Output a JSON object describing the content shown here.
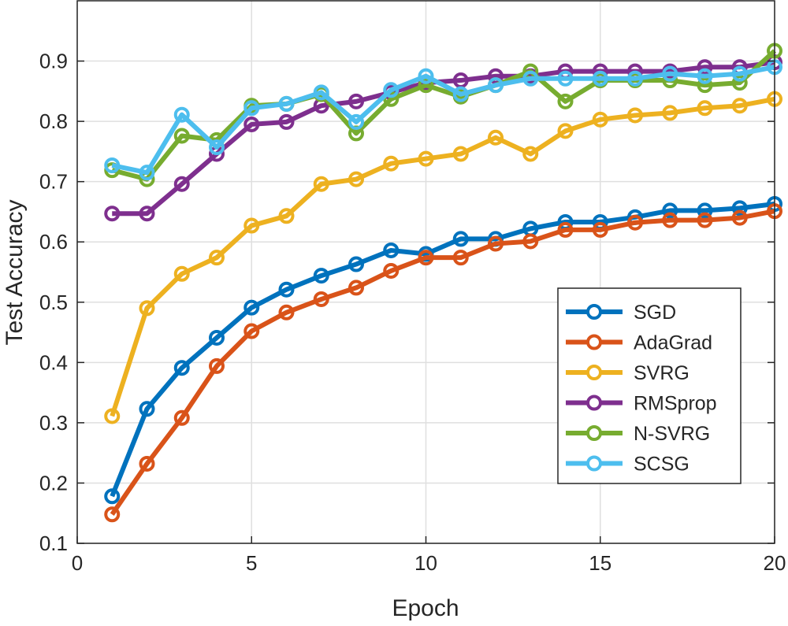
{
  "chart_data": {
    "type": "line",
    "title": "",
    "xlabel": "Epoch",
    "ylabel": "Test Accuracy",
    "xlim": [
      0,
      20
    ],
    "ylim": [
      0.1,
      1.0
    ],
    "xticks": [
      "0",
      "5",
      "10",
      "15",
      "20"
    ],
    "yticks": [
      "0.1",
      "0.2",
      "0.3",
      "0.4",
      "0.5",
      "0.6",
      "0.7",
      "0.8",
      "0.9"
    ],
    "grid": true,
    "legend_position": "lower-right",
    "x": [
      1,
      2,
      3,
      4,
      5,
      6,
      7,
      8,
      9,
      10,
      11,
      12,
      13,
      14,
      15,
      16,
      17,
      18,
      19,
      20
    ],
    "series": [
      {
        "name": "SGD",
        "color": "#0072BD",
        "values": [
          0.178,
          0.323,
          0.391,
          0.441,
          0.491,
          0.521,
          0.544,
          0.563,
          0.586,
          0.58,
          0.605,
          0.605,
          0.622,
          0.633,
          0.633,
          0.641,
          0.652,
          0.652,
          0.656,
          0.663
        ]
      },
      {
        "name": "AdaGrad",
        "color": "#D95319",
        "values": [
          0.148,
          0.232,
          0.308,
          0.394,
          0.452,
          0.483,
          0.505,
          0.524,
          0.552,
          0.574,
          0.574,
          0.597,
          0.601,
          0.62,
          0.62,
          0.632,
          0.636,
          0.636,
          0.64,
          0.651
        ]
      },
      {
        "name": "SVRG",
        "color": "#EDB120",
        "values": [
          0.311,
          0.49,
          0.547,
          0.574,
          0.627,
          0.643,
          0.696,
          0.704,
          0.73,
          0.738,
          0.746,
          0.773,
          0.746,
          0.784,
          0.803,
          0.81,
          0.814,
          0.822,
          0.826,
          0.837
        ]
      },
      {
        "name": "RMSprop",
        "color": "#7E2F8E",
        "values": [
          0.647,
          0.647,
          0.696,
          0.746,
          0.795,
          0.799,
          0.826,
          0.833,
          0.848,
          0.864,
          0.868,
          0.875,
          0.875,
          0.883,
          0.883,
          0.883,
          0.883,
          0.89,
          0.89,
          0.898
        ]
      },
      {
        "name": "N-SVRG",
        "color": "#77AC30",
        "values": [
          0.719,
          0.704,
          0.776,
          0.769,
          0.826,
          0.829,
          0.845,
          0.78,
          0.837,
          0.86,
          0.841,
          0.86,
          0.883,
          0.833,
          0.868,
          0.868,
          0.868,
          0.86,
          0.864,
          0.917
        ]
      },
      {
        "name": "SCSG",
        "color": "#4DBEEE",
        "values": [
          0.727,
          0.715,
          0.811,
          0.757,
          0.822,
          0.829,
          0.848,
          0.799,
          0.852,
          0.875,
          0.845,
          0.86,
          0.871,
          0.871,
          0.871,
          0.871,
          0.879,
          0.875,
          0.879,
          0.89
        ]
      }
    ]
  }
}
